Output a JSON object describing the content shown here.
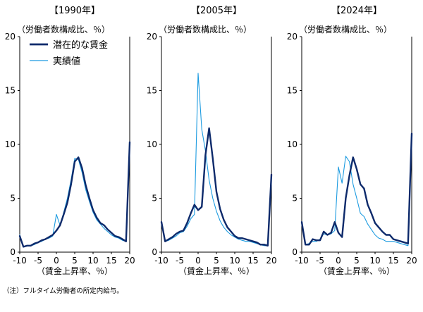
{
  "chart_data": [
    {
      "type": "line",
      "title": "【1990年】",
      "ylabel": "（労働者数構成比、％）",
      "xlabel": "（賃金上昇率、％）",
      "xlim": [
        -10,
        20
      ],
      "ylim": [
        0,
        20
      ],
      "xticks": [
        "-10",
        "-5",
        "0",
        "5",
        "10",
        "15",
        "20"
      ],
      "yticks": [
        "0",
        "5",
        "10",
        "15",
        "20"
      ],
      "legend": "top-left",
      "x": [
        -10,
        -9,
        -8,
        -7,
        -6,
        -5,
        -4,
        -3,
        -2,
        -1,
        0,
        1,
        2,
        3,
        4,
        5,
        6,
        7,
        8,
        9,
        10,
        11,
        12,
        13,
        14,
        15,
        16,
        17,
        18,
        19,
        20
      ],
      "series": [
        {
          "name": "潜在的な賃金",
          "color": "#0d2a6b",
          "width": 2.4,
          "values": [
            1.5,
            0.5,
            0.6,
            0.6,
            0.8,
            0.9,
            1.1,
            1.2,
            1.4,
            1.6,
            2.0,
            2.5,
            3.5,
            4.6,
            6.3,
            8.4,
            8.8,
            7.8,
            6.2,
            5.0,
            3.9,
            3.2,
            2.7,
            2.5,
            2.1,
            1.8,
            1.5,
            1.4,
            1.2,
            1.0,
            10.2
          ]
        },
        {
          "name": "実績値",
          "color": "#1c9be0",
          "width": 1.1,
          "values": [
            1.6,
            0.5,
            0.6,
            0.6,
            0.7,
            0.9,
            1.0,
            1.2,
            1.3,
            1.5,
            3.5,
            2.5,
            3.7,
            5.0,
            6.7,
            8.7,
            8.6,
            7.4,
            5.8,
            4.7,
            3.7,
            3.0,
            2.6,
            2.2,
            1.9,
            1.6,
            1.4,
            1.3,
            1.1,
            1.0,
            10.0
          ]
        }
      ]
    },
    {
      "type": "line",
      "title": "【2005年】",
      "ylabel": "（労働者数構成比、％）",
      "xlabel": "（賃金上昇率、％）",
      "xlim": [
        -10,
        20
      ],
      "ylim": [
        0,
        20
      ],
      "xticks": [
        "-10",
        "-5",
        "0",
        "5",
        "10",
        "15",
        "20"
      ],
      "yticks": [
        "0",
        "5",
        "10",
        "15",
        "20"
      ],
      "x": [
        -10,
        -9,
        -8,
        -7,
        -6,
        -5,
        -4,
        -3,
        -2,
        -1,
        0,
        1,
        2,
        3,
        4,
        5,
        6,
        7,
        8,
        9,
        10,
        11,
        12,
        13,
        14,
        15,
        16,
        17,
        18,
        19,
        20
      ],
      "series": [
        {
          "name": "潜在的な賃金",
          "color": "#0d2a6b",
          "width": 2.4,
          "values": [
            2.8,
            1.0,
            1.2,
            1.4,
            1.7,
            1.9,
            2.0,
            2.7,
            3.6,
            4.4,
            3.9,
            4.2,
            9.0,
            11.5,
            8.7,
            5.6,
            4.0,
            3.0,
            2.3,
            1.9,
            1.5,
            1.3,
            1.3,
            1.2,
            1.1,
            1.0,
            0.9,
            0.7,
            0.7,
            0.6,
            7.2
          ]
        },
        {
          "name": "実績値",
          "color": "#1c9be0",
          "width": 1.1,
          "values": [
            2.7,
            1.0,
            1.1,
            1.3,
            1.5,
            1.8,
            1.9,
            2.4,
            3.1,
            3.5,
            16.6,
            11.4,
            9.4,
            6.7,
            5.0,
            3.8,
            2.9,
            2.3,
            1.9,
            1.6,
            1.4,
            1.2,
            1.1,
            1.0,
            1.0,
            0.9,
            0.8,
            0.7,
            0.6,
            0.6,
            7.0
          ]
        }
      ]
    },
    {
      "type": "line",
      "title": "【2024年】",
      "ylabel": "（労働者数構成比、％）",
      "xlabel": "（賃金上昇率、％）",
      "xlim": [
        -10,
        20
      ],
      "ylim": [
        0,
        20
      ],
      "xticks": [
        "-10",
        "-5",
        "0",
        "5",
        "10",
        "15",
        "20"
      ],
      "yticks": [
        "0",
        "5",
        "10",
        "15",
        "20"
      ],
      "x": [
        -10,
        -9,
        -8,
        -7,
        -6,
        -5,
        -4,
        -3,
        -2,
        -1,
        0,
        1,
        2,
        3,
        4,
        5,
        6,
        7,
        8,
        9,
        10,
        11,
        12,
        13,
        14,
        15,
        16,
        17,
        18,
        19,
        20
      ],
      "series": [
        {
          "name": "潜在的な賃金",
          "color": "#0d2a6b",
          "width": 2.4,
          "values": [
            2.8,
            0.7,
            0.7,
            1.2,
            1.1,
            1.1,
            1.9,
            1.6,
            1.8,
            2.8,
            1.8,
            1.4,
            5.0,
            7.1,
            8.8,
            7.7,
            6.3,
            5.9,
            4.4,
            3.6,
            2.7,
            2.3,
            1.9,
            1.6,
            1.6,
            1.2,
            1.1,
            1.0,
            0.9,
            0.8,
            11.0
          ]
        },
        {
          "name": "実績値",
          "color": "#1c9be0",
          "width": 1.1,
          "values": [
            2.6,
            0.7,
            0.8,
            1.0,
            1.0,
            1.2,
            1.7,
            1.6,
            1.7,
            2.0,
            7.9,
            6.4,
            8.9,
            8.4,
            6.3,
            5.0,
            3.6,
            3.3,
            2.6,
            2.1,
            1.6,
            1.3,
            1.2,
            1.0,
            1.0,
            1.0,
            0.9,
            0.8,
            0.7,
            0.6,
            10.5
          ]
        }
      ]
    }
  ],
  "note": "（注）フルタイム労働者の所定内給与。"
}
